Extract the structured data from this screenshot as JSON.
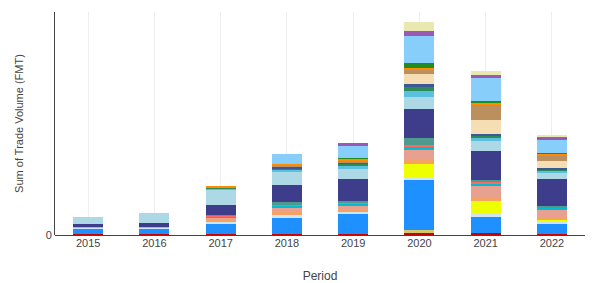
{
  "chart_data": {
    "type": "bar",
    "stacked": true,
    "xlabel": "Period",
    "ylabel": "Sum of Trade Volume (FMT)",
    "categories": [
      "2015",
      "2016",
      "2017",
      "2018",
      "2019",
      "2020",
      "2021",
      "2022"
    ],
    "series": [
      {
        "color": "#cc0000",
        "values": [
          0.003,
          0.003,
          0.004,
          0.005,
          0.005,
          0.01,
          0.008,
          0.006
        ]
      },
      {
        "color": "#d4c86a",
        "values": [
          0.0,
          0.0,
          0.0,
          0.0,
          0.0,
          0.01,
          0.0,
          0.0
        ]
      },
      {
        "color": "#1e90ff",
        "values": [
          0.02,
          0.02,
          0.04,
          0.065,
          0.08,
          0.2,
          0.065,
          0.04
        ]
      },
      {
        "color": "#d2e4f0",
        "values": [
          0.004,
          0.005,
          0.007,
          0.01,
          0.008,
          0.012,
          0.01,
          0.007
        ]
      },
      {
        "color": "#eeff00",
        "values": [
          0.0,
          0.0,
          0.0,
          0.0,
          0.0,
          0.055,
          0.055,
          0.008
        ]
      },
      {
        "color": "#f4a460",
        "values": [
          0.005,
          0.006,
          0.01,
          0.018,
          0.013,
          0.018,
          0.015,
          0.01
        ]
      },
      {
        "color": "#e8a090",
        "values": [
          0.0,
          0.0,
          0.008,
          0.012,
          0.01,
          0.038,
          0.045,
          0.03
        ]
      },
      {
        "color": "#00bcd4",
        "values": [
          0.0,
          0.0,
          0.005,
          0.007,
          0.009,
          0.012,
          0.008,
          0.006
        ]
      },
      {
        "color": "#ff6961",
        "values": [
          0.0,
          0.0,
          0.004,
          0.006,
          0.006,
          0.008,
          0.006,
          0.004
        ]
      },
      {
        "color": "#4e9a8f",
        "values": [
          0.0,
          0.0,
          0.004,
          0.01,
          0.007,
          0.03,
          0.008,
          0.006
        ]
      },
      {
        "color": "#3d3d8c",
        "values": [
          0.012,
          0.015,
          0.04,
          0.07,
          0.09,
          0.115,
          0.12,
          0.11
        ]
      },
      {
        "color": "#add8e6",
        "values": [
          0.03,
          0.04,
          0.06,
          0.05,
          0.04,
          0.05,
          0.04,
          0.025
        ]
      },
      {
        "color": "#5bc0de",
        "values": [
          0.0,
          0.0,
          0.005,
          0.009,
          0.01,
          0.025,
          0.01,
          0.007
        ]
      },
      {
        "color": "#2e8b57",
        "values": [
          0.0,
          0.0,
          0.004,
          0.005,
          0.008,
          0.015,
          0.008,
          0.005
        ]
      },
      {
        "color": "#3b5998",
        "values": [
          0.0,
          0.0,
          0.0,
          0.006,
          0.006,
          0.01,
          0.008,
          0.006
        ]
      },
      {
        "color": "#f5deb3",
        "values": [
          0.0,
          0.0,
          0.0,
          0.0,
          0.0,
          0.04,
          0.06,
          0.03
        ]
      },
      {
        "color": "#bc8f5f",
        "values": [
          0.0,
          0.0,
          0.0,
          0.005,
          0.005,
          0.018,
          0.06,
          0.02
        ]
      },
      {
        "color": "#ff8c00",
        "values": [
          0.0,
          0.0,
          0.005,
          0.01,
          0.008,
          0.01,
          0.008,
          0.006
        ]
      },
      {
        "color": "#228b22",
        "values": [
          0.0,
          0.0,
          0.0,
          0.0,
          0.005,
          0.018,
          0.008,
          0.004
        ]
      },
      {
        "color": "#87cefa",
        "values": [
          0.0,
          0.0,
          0.0,
          0.04,
          0.05,
          0.11,
          0.09,
          0.055
        ]
      },
      {
        "color": "#9b59b6",
        "values": [
          0.0,
          0.0,
          0.0,
          0.0,
          0.01,
          0.02,
          0.015,
          0.012
        ]
      },
      {
        "color": "#e8e8b0",
        "values": [
          0.0,
          0.0,
          0.0,
          0.0,
          0.0,
          0.035,
          0.015,
          0.008
        ]
      }
    ],
    "ylim": [
      0,
      0.9
    ],
    "yticks": [
      0
    ],
    "grid": true
  }
}
